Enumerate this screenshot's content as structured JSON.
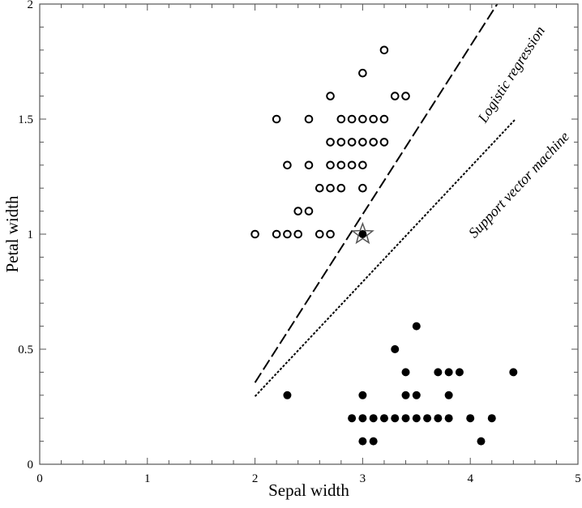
{
  "chart_data": {
    "type": "scatter",
    "title": "",
    "xlabel": "Sepal width",
    "ylabel": "Petal width",
    "xlim": [
      0,
      5
    ],
    "ylim": [
      0,
      2
    ],
    "x_ticks": [
      "0",
      "1",
      "2",
      "3",
      "4",
      "5"
    ],
    "y_ticks": [
      "0",
      "0.5",
      "1",
      "1.5",
      "2"
    ],
    "grid": false,
    "series": [
      {
        "marker": "open-circle",
        "points": [
          [
            3.2,
            1.8
          ],
          [
            3.0,
            1.7
          ],
          [
            2.7,
            1.6
          ],
          [
            3.3,
            1.6
          ],
          [
            3.4,
            1.6
          ],
          [
            2.2,
            1.5
          ],
          [
            2.5,
            1.5
          ],
          [
            2.8,
            1.5
          ],
          [
            2.9,
            1.5
          ],
          [
            3.0,
            1.5
          ],
          [
            3.1,
            1.5
          ],
          [
            3.2,
            1.5
          ],
          [
            2.7,
            1.4
          ],
          [
            2.8,
            1.4
          ],
          [
            2.9,
            1.4
          ],
          [
            3.0,
            1.4
          ],
          [
            3.1,
            1.4
          ],
          [
            3.2,
            1.4
          ],
          [
            2.3,
            1.3
          ],
          [
            2.5,
            1.3
          ],
          [
            2.7,
            1.3
          ],
          [
            2.8,
            1.3
          ],
          [
            2.9,
            1.3
          ],
          [
            3.0,
            1.3
          ],
          [
            2.6,
            1.2
          ],
          [
            2.7,
            1.2
          ],
          [
            2.8,
            1.2
          ],
          [
            3.0,
            1.2
          ],
          [
            2.4,
            1.1
          ],
          [
            2.5,
            1.1
          ],
          [
            2.0,
            1.0
          ],
          [
            2.2,
            1.0
          ],
          [
            2.3,
            1.0
          ],
          [
            2.4,
            1.0
          ],
          [
            2.6,
            1.0
          ],
          [
            2.7,
            1.0
          ]
        ]
      },
      {
        "marker": "filled-circle",
        "points": [
          [
            3.5,
            0.6
          ],
          [
            3.3,
            0.5
          ],
          [
            3.4,
            0.4
          ],
          [
            3.7,
            0.4
          ],
          [
            3.8,
            0.4
          ],
          [
            3.9,
            0.4
          ],
          [
            4.4,
            0.4
          ],
          [
            2.3,
            0.3
          ],
          [
            3.0,
            0.3
          ],
          [
            3.4,
            0.3
          ],
          [
            3.5,
            0.3
          ],
          [
            3.8,
            0.3
          ],
          [
            2.9,
            0.2
          ],
          [
            3.0,
            0.2
          ],
          [
            3.1,
            0.2
          ],
          [
            3.2,
            0.2
          ],
          [
            3.3,
            0.2
          ],
          [
            3.4,
            0.2
          ],
          [
            3.5,
            0.2
          ],
          [
            3.6,
            0.2
          ],
          [
            3.7,
            0.2
          ],
          [
            3.8,
            0.2
          ],
          [
            4.0,
            0.2
          ],
          [
            4.2,
            0.2
          ],
          [
            3.0,
            0.1
          ],
          [
            3.1,
            0.1
          ],
          [
            4.1,
            0.1
          ]
        ]
      },
      {
        "marker": "star-filled-circle",
        "points": [
          [
            3.0,
            1.0
          ]
        ]
      }
    ],
    "lines": [
      {
        "label": "Logistic regression",
        "style": "dashed",
        "from": [
          2.0,
          0.355
        ],
        "to": [
          4.25,
          2.0
        ]
      },
      {
        "label": "Support vector machine",
        "style": "dotted",
        "from": [
          2.0,
          0.295
        ],
        "to": [
          4.42,
          1.5
        ]
      }
    ]
  }
}
